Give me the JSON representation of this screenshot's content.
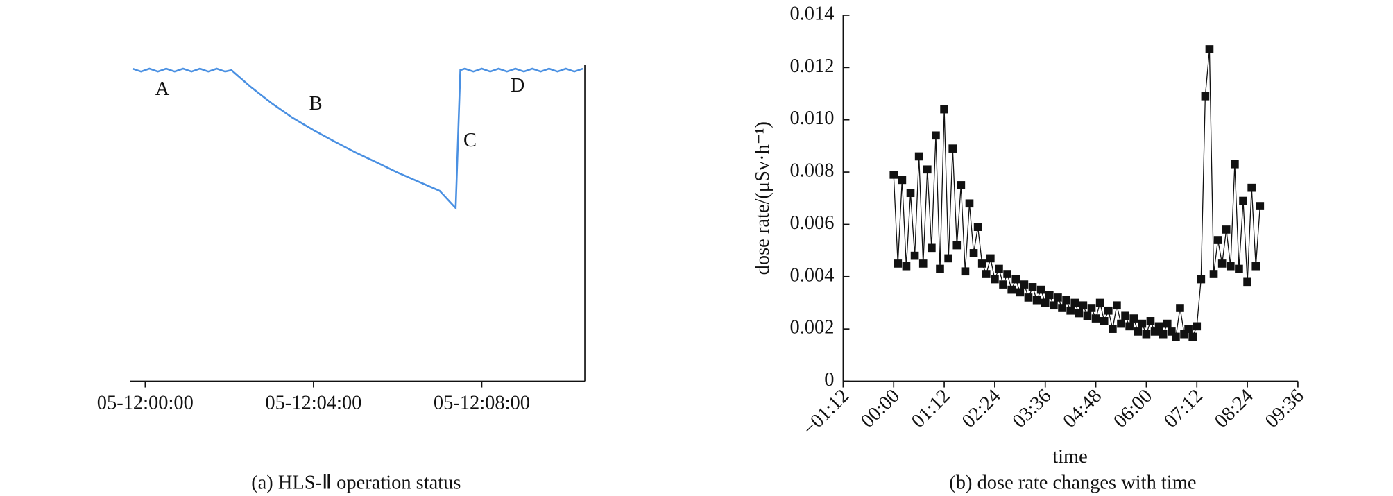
{
  "chart_data": [
    {
      "type": "line",
      "caption": "(a) HLS-Ⅱ operation status",
      "color": "#4a90e2",
      "annotations": [
        "A",
        "B",
        "C",
        "D"
      ],
      "x": [
        -0.3,
        -0.1,
        0.1,
        0.3,
        0.5,
        0.7,
        0.9,
        1.1,
        1.3,
        1.5,
        1.7,
        1.9,
        2.05,
        2.5,
        3,
        3.5,
        4,
        4.5,
        5,
        5.5,
        6,
        6.5,
        7,
        7.38,
        7.49,
        7.6,
        7.8,
        8,
        8.2,
        8.4,
        8.6,
        8.8,
        9,
        9.2,
        9.4,
        9.6,
        9.8,
        10,
        10.2,
        10.4
      ],
      "values": [
        85.4,
        84.6,
        85.4,
        84.6,
        85.4,
        84.6,
        85.4,
        84.6,
        85.4,
        84.6,
        85.4,
        84.6,
        85,
        80.5,
        76,
        72,
        68.6,
        65.5,
        62.5,
        59.8,
        57,
        54.5,
        52,
        47.3,
        85,
        85.4,
        84.6,
        85.4,
        84.6,
        85.4,
        84.6,
        85.4,
        84.6,
        85.4,
        84.6,
        85.4,
        84.6,
        85.4,
        84.6,
        85.4
      ],
      "xlim": [
        -0.36,
        10.45
      ],
      "xticks": [
        {
          "value": 0,
          "label": "05-12:00:00"
        },
        {
          "value": 4,
          "label": "05-12:04:00"
        },
        {
          "value": 8,
          "label": "05-12:08:00"
        }
      ],
      "ylim": [
        0,
        100
      ]
    },
    {
      "type": "line",
      "markers": "square",
      "caption": "(b) dose rate changes with time",
      "color": "#111111",
      "xlabel": "time",
      "ylabel": "dose rate/(μSv·h⁻¹)",
      "x": [
        0,
        0.1,
        0.2,
        0.3,
        0.4,
        0.5,
        0.6,
        0.7,
        0.8,
        0.9,
        1,
        1.1,
        1.2,
        1.3,
        1.4,
        1.5,
        1.6,
        1.7,
        1.8,
        1.9,
        2,
        2.1,
        2.2,
        2.3,
        2.4,
        2.5,
        2.6,
        2.7,
        2.8,
        2.9,
        3,
        3.1,
        3.2,
        3.3,
        3.4,
        3.5,
        3.6,
        3.7,
        3.8,
        3.9,
        4,
        4.1,
        4.2,
        4.3,
        4.4,
        4.5,
        4.6,
        4.7,
        4.8,
        4.9,
        5,
        5.1,
        5.2,
        5.3,
        5.4,
        5.5,
        5.6,
        5.7,
        5.8,
        5.9,
        6,
        6.1,
        6.2,
        6.3,
        6.4,
        6.5,
        6.6,
        6.7,
        6.8,
        6.9,
        7,
        7.1,
        7.2,
        7.3,
        7.4,
        7.5,
        7.6,
        7.7,
        7.8,
        7.9,
        8,
        8.1,
        8.2,
        8.3,
        8.4,
        8.5,
        8.6,
        8.7
      ],
      "values": [
        0.0079,
        0.0045,
        0.0077,
        0.0044,
        0.0072,
        0.0048,
        0.0086,
        0.0045,
        0.0081,
        0.0051,
        0.0094,
        0.0043,
        0.0104,
        0.0047,
        0.0089,
        0.0052,
        0.0075,
        0.0042,
        0.0068,
        0.0049,
        0.0059,
        0.0045,
        0.0041,
        0.0047,
        0.0039,
        0.0043,
        0.0037,
        0.0041,
        0.0035,
        0.0039,
        0.0034,
        0.0037,
        0.0032,
        0.0036,
        0.0031,
        0.0035,
        0.003,
        0.0033,
        0.0029,
        0.0032,
        0.0028,
        0.0031,
        0.0027,
        0.003,
        0.0026,
        0.0029,
        0.0025,
        0.0028,
        0.0024,
        0.003,
        0.0023,
        0.0027,
        0.002,
        0.0029,
        0.0022,
        0.0025,
        0.0021,
        0.0024,
        0.0019,
        0.0022,
        0.0018,
        0.0023,
        0.0019,
        0.0021,
        0.0018,
        0.0022,
        0.0019,
        0.0017,
        0.0028,
        0.0018,
        0.002,
        0.0017,
        0.0021,
        0.0039,
        0.0109,
        0.0127,
        0.0041,
        0.0054,
        0.0045,
        0.0058,
        0.0044,
        0.0083,
        0.0043,
        0.0069,
        0.0038,
        0.0074,
        0.0044,
        0.0067
      ],
      "xlim": [
        -1.2,
        9.6
      ],
      "xticks": [
        {
          "value": -1.2,
          "label": "−01:12"
        },
        {
          "value": 0,
          "label": "00:00"
        },
        {
          "value": 1.2,
          "label": "01:12"
        },
        {
          "value": 2.4,
          "label": "02:24"
        },
        {
          "value": 3.6,
          "label": "03:36"
        },
        {
          "value": 4.8,
          "label": "04:48"
        },
        {
          "value": 6,
          "label": "06:00"
        },
        {
          "value": 7.2,
          "label": "07:12"
        },
        {
          "value": 8.4,
          "label": "08:24"
        },
        {
          "value": 9.6,
          "label": "09:36"
        }
      ],
      "ylim": [
        0,
        0.014
      ],
      "yticks": [
        0,
        0.002,
        0.004,
        0.006,
        0.008,
        {
          "value": 0.01,
          "label": "0.010"
        },
        {
          "value": 0.012,
          "label": "0.012"
        },
        {
          "value": 0.014,
          "label": "0.014"
        }
      ]
    }
  ]
}
